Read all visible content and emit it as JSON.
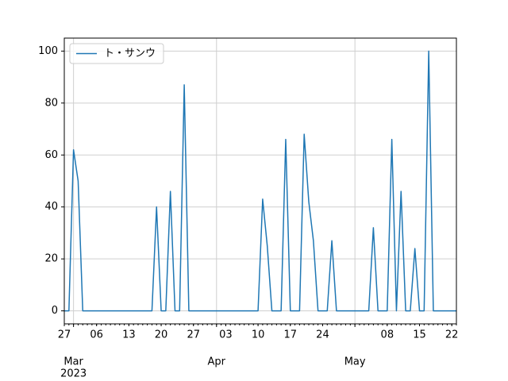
{
  "chart_data": {
    "type": "line",
    "x": [
      "2023-02-27",
      "2023-02-28",
      "2023-03-01",
      "2023-03-02",
      "2023-03-03",
      "2023-03-04",
      "2023-03-05",
      "2023-03-06",
      "2023-03-07",
      "2023-03-08",
      "2023-03-09",
      "2023-03-10",
      "2023-03-11",
      "2023-03-12",
      "2023-03-13",
      "2023-03-14",
      "2023-03-15",
      "2023-03-16",
      "2023-03-17",
      "2023-03-18",
      "2023-03-19",
      "2023-03-20",
      "2023-03-21",
      "2023-03-22",
      "2023-03-23",
      "2023-03-24",
      "2023-03-25",
      "2023-03-26",
      "2023-03-27",
      "2023-03-28",
      "2023-03-29",
      "2023-03-30",
      "2023-03-31",
      "2023-04-01",
      "2023-04-02",
      "2023-04-03",
      "2023-04-04",
      "2023-04-05",
      "2023-04-06",
      "2023-04-07",
      "2023-04-08",
      "2023-04-09",
      "2023-04-10",
      "2023-04-11",
      "2023-04-12",
      "2023-04-13",
      "2023-04-14",
      "2023-04-15",
      "2023-04-16",
      "2023-04-17",
      "2023-04-18",
      "2023-04-19",
      "2023-04-20",
      "2023-04-21",
      "2023-04-22",
      "2023-04-23",
      "2023-04-24",
      "2023-04-25",
      "2023-04-26",
      "2023-04-27",
      "2023-04-28",
      "2023-04-29",
      "2023-04-30",
      "2023-05-01",
      "2023-05-02",
      "2023-05-03",
      "2023-05-04",
      "2023-05-05",
      "2023-05-06",
      "2023-05-07",
      "2023-05-08",
      "2023-05-09",
      "2023-05-10",
      "2023-05-11",
      "2023-05-12",
      "2023-05-13",
      "2023-05-14",
      "2023-05-15",
      "2023-05-16",
      "2023-05-17",
      "2023-05-18",
      "2023-05-19",
      "2023-05-20",
      "2023-05-21",
      "2023-05-22",
      "2023-05-23"
    ],
    "series": [
      {
        "name": "ト・サンウ",
        "color": "#1f77b4",
        "values": [
          0,
          0,
          62,
          50,
          0,
          0,
          0,
          0,
          0,
          0,
          0,
          0,
          0,
          0,
          0,
          0,
          0,
          0,
          0,
          0,
          40,
          0,
          0,
          46,
          0,
          0,
          87,
          0,
          0,
          0,
          0,
          0,
          0,
          0,
          0,
          0,
          0,
          0,
          0,
          0,
          0,
          0,
          0,
          43,
          25,
          0,
          0,
          0,
          66,
          0,
          0,
          0,
          68,
          42,
          27,
          0,
          0,
          0,
          27,
          0,
          0,
          0,
          0,
          0,
          0,
          0,
          0,
          32,
          0,
          0,
          0,
          66,
          0,
          46,
          0,
          0,
          24,
          0,
          0,
          100,
          0,
          0,
          0,
          0,
          0,
          0
        ]
      }
    ],
    "xlim": [
      "2023-02-27",
      "2023-05-23"
    ],
    "xticks": [
      {
        "value": "2023-03-01",
        "label": "Mar"
      },
      {
        "value": "2023-04-01",
        "label": "Apr"
      },
      {
        "value": "2023-05-01",
        "label": "May"
      }
    ],
    "xticks_minor": [
      {
        "value": "2023-02-27",
        "label": "27"
      },
      {
        "value": "2023-03-06",
        "label": "06"
      },
      {
        "value": "2023-03-13",
        "label": "13"
      },
      {
        "value": "2023-03-20",
        "label": "20"
      },
      {
        "value": "2023-03-27",
        "label": "27"
      },
      {
        "value": "2023-04-03",
        "label": "03"
      },
      {
        "value": "2023-04-10",
        "label": "10"
      },
      {
        "value": "2023-04-17",
        "label": "17"
      },
      {
        "value": "2023-04-24",
        "label": "24"
      },
      {
        "value": "2023-05-08",
        "label": "08"
      },
      {
        "value": "2023-05-15",
        "label": "15"
      },
      {
        "value": "2023-05-22",
        "label": "22"
      }
    ],
    "x_offset_label": "2023",
    "ylim": [
      -5,
      105
    ],
    "yticks": [
      0,
      20,
      40,
      60,
      80,
      100
    ],
    "grid": true,
    "legend": "upper left"
  }
}
